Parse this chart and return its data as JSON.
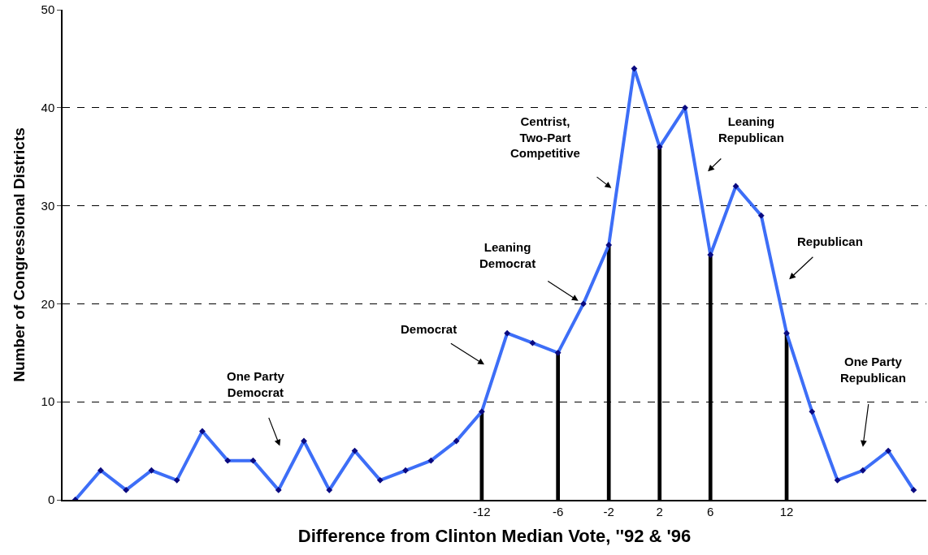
{
  "chart_data": {
    "type": "line",
    "xlabel": "Difference from Clinton Median Vote, ''92 & '96",
    "ylabel": "Number of Congressional Districts",
    "categories": [
      null,
      null,
      null,
      null,
      null,
      null,
      null,
      null,
      null,
      null,
      null,
      null,
      null,
      null,
      null,
      null,
      "-12",
      null,
      null,
      "-6",
      null,
      "-2",
      null,
      "2",
      null,
      "6",
      null,
      null,
      "12",
      null,
      null,
      null,
      null,
      null
    ],
    "series": [
      {
        "color": "#3d6ef7",
        "values": [
          0,
          3,
          1,
          3,
          2,
          7,
          4,
          4,
          1,
          6,
          1,
          5,
          2,
          3,
          4,
          6,
          9,
          17,
          16,
          15,
          20,
          26,
          44,
          36,
          40,
          25,
          32,
          29,
          17,
          9,
          2,
          3,
          5,
          1
        ]
      },
      {
        "type": "bar",
        "color": "#000000",
        "values": [
          null,
          null,
          null,
          null,
          null,
          null,
          null,
          null,
          null,
          null,
          null,
          null,
          null,
          null,
          null,
          null,
          9,
          null,
          null,
          15,
          null,
          26,
          null,
          36,
          null,
          25,
          null,
          null,
          17,
          null,
          null,
          null,
          null,
          null
        ]
      }
    ],
    "ylim": [
      0,
      50
    ],
    "yticks": [
      0,
      10,
      20,
      30,
      40,
      50
    ],
    "grid": "y",
    "marker": "diamond",
    "line_style": "solid",
    "annotations": [
      "One Party\nDemocrat",
      "Democrat",
      "Leaning\nDemocrat",
      "Centrist,\nTwo-Part\nCompetitive",
      "Leaning\nRepublican",
      "Republican",
      "One Party\nRepublican"
    ]
  }
}
